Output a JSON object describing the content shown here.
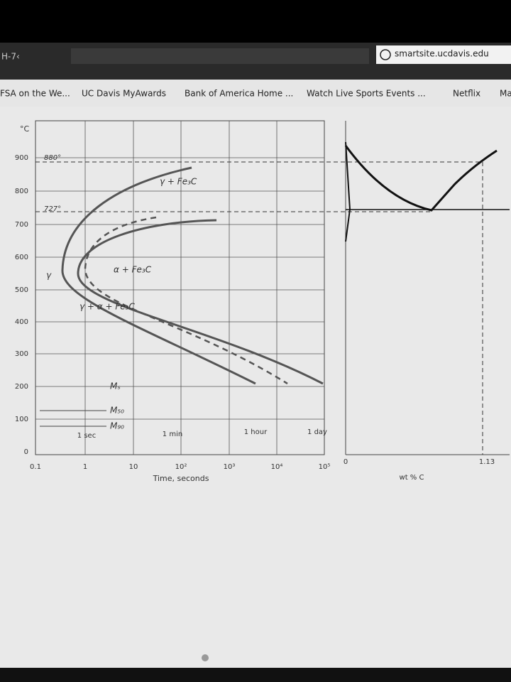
{
  "browser": {
    "tab_text": "H-7‹",
    "address": "smartsite.ucdavis.edu",
    "bookmarks": [
      "FSA on the We...",
      "UC Davis MyAwards",
      "Bank of America Home ...",
      "Watch Live Sports Events ...",
      "Netflix",
      "Ma"
    ]
  },
  "diagram": {
    "y_unit": "°C",
    "y_labels": [
      "900",
      "800",
      "700",
      "600",
      "500",
      "400",
      "300",
      "200",
      "100",
      "0"
    ],
    "x_labels": [
      "0.1",
      "1",
      "10",
      "10²",
      "10³",
      "10⁴",
      "10⁵"
    ],
    "x_title": "Time, seconds",
    "annotations": [
      "880°",
      "727°",
      "γ + Fe₃C",
      "α + Fe₃C",
      "γ",
      "γ + α + Fe₃C",
      "Mₛ",
      "M₅₀",
      "M₉₀"
    ],
    "time_marks": [
      "1 sec",
      "1 min",
      "1 hour",
      "1 day"
    ]
  },
  "phase_diagram": {
    "x_labels": [
      "0",
      "1.13"
    ],
    "x_title": "wt % C"
  }
}
